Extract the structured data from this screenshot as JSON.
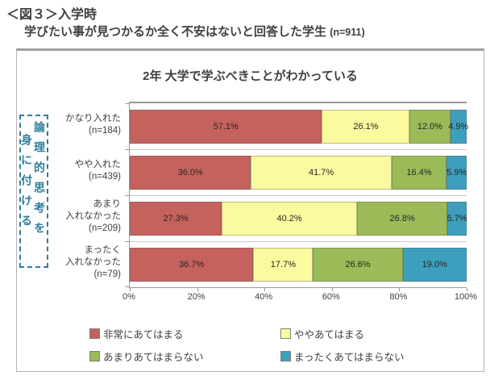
{
  "header": {
    "line1": "＜図３＞入学時",
    "line2": "学びたい事が見つかるか全く不安はないと回答した学生",
    "line2_n": "(n=911)"
  },
  "chart_data": {
    "type": "bar",
    "orientation": "horizontal",
    "stacked": true,
    "title": "2年 大学で学ぶべきことがわかっている",
    "side_label": {
      "column1": "論理的思考を",
      "column2": "身に付ける"
    },
    "categories": [
      {
        "label_lines": [
          "かなり入れた",
          "(n=184)"
        ],
        "values": [
          57.1,
          26.1,
          12.0,
          4.9
        ]
      },
      {
        "label_lines": [
          "やや入れた",
          "(n=439)"
        ],
        "values": [
          36.0,
          41.7,
          16.4,
          5.9
        ]
      },
      {
        "label_lines": [
          "あまり",
          "入れなかった",
          "(n=209)"
        ],
        "values": [
          27.3,
          40.2,
          26.8,
          5.7
        ]
      },
      {
        "label_lines": [
          "まったく",
          "入れなかった",
          "(n=79)"
        ],
        "values": [
          36.7,
          17.7,
          26.6,
          19.0
        ]
      }
    ],
    "series": [
      {
        "name": "非常にあてはまる",
        "color": "#C5625D"
      },
      {
        "name": "ややあてはまる",
        "color": "#FAFA9E"
      },
      {
        "name": "あまりあてはまらない",
        "color": "#9BBB59"
      },
      {
        "name": "まったくあてはまらない",
        "color": "#3D9FBD"
      }
    ],
    "x_axis": {
      "min": 0,
      "max": 100,
      "ticks": [
        "0%",
        "20%",
        "40%",
        "60%",
        "80%",
        "100%"
      ]
    },
    "value_suffix": "%",
    "grid": "category-separators-only",
    "legend_position": "bottom"
  },
  "colors": {
    "title_text": "#3F3F3F",
    "side_label_text": "#2E7E9C",
    "axis_line": "#9A9A9A",
    "frame_border": "#B3B3B3",
    "separator_line": "#C9C9C9"
  }
}
